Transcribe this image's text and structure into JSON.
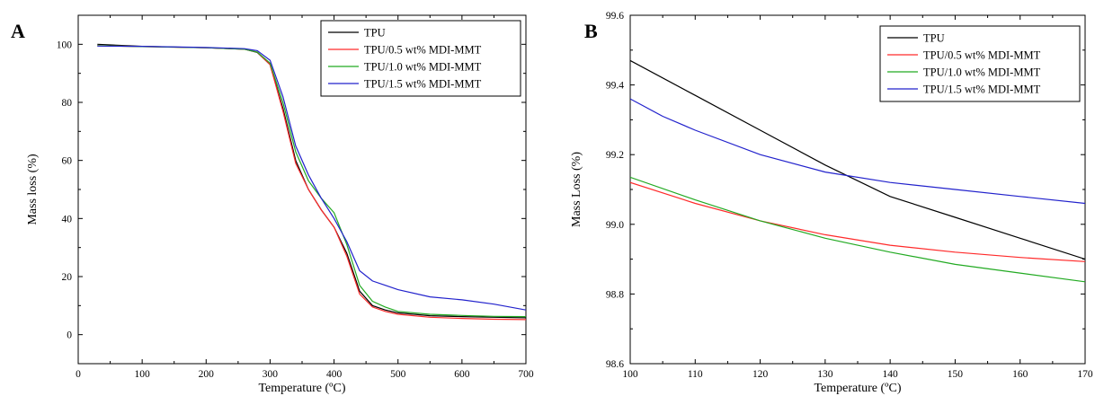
{
  "chart_data": [
    {
      "panel": "A",
      "type": "line",
      "xlabel": "Temperature (ºC)",
      "ylabel": "Mass loss (%)",
      "xlim": [
        0,
        700
      ],
      "ylim": [
        -10,
        110
      ],
      "xticks": [
        0,
        100,
        200,
        300,
        400,
        500,
        600,
        700
      ],
      "yticks": [
        0,
        20,
        40,
        60,
        80,
        100
      ],
      "legend_position": "top-right",
      "series": [
        {
          "name": "TPU",
          "color": "#000000",
          "x": [
            30,
            100,
            200,
            260,
            280,
            300,
            320,
            340,
            360,
            380,
            400,
            420,
            440,
            460,
            480,
            500,
            550,
            600,
            650,
            700
          ],
          "y": [
            100,
            99.3,
            98.8,
            98.3,
            97.2,
            93,
            78,
            60,
            50,
            43,
            37,
            28,
            15,
            10,
            8.5,
            7.5,
            6.5,
            6.2,
            6,
            5.8
          ]
        },
        {
          "name": "TPU/0.5 wt% MDI-MMT",
          "color": "#ff2a2a",
          "x": [
            30,
            100,
            200,
            260,
            280,
            300,
            320,
            340,
            360,
            380,
            400,
            420,
            440,
            460,
            480,
            500,
            550,
            600,
            650,
            700
          ],
          "y": [
            99.5,
            99.2,
            98.8,
            98.3,
            97.3,
            93,
            77,
            59,
            50,
            43,
            37,
            27,
            14,
            9.5,
            8,
            7,
            6,
            5.6,
            5.3,
            5.2
          ]
        },
        {
          "name": "TPU/1.0 wt% MDI-MMT",
          "color": "#22aa22",
          "x": [
            30,
            100,
            200,
            260,
            280,
            300,
            320,
            340,
            360,
            380,
            400,
            420,
            440,
            460,
            480,
            500,
            550,
            600,
            650,
            700
          ],
          "y": [
            99.5,
            99.2,
            98.8,
            98.3,
            97.3,
            93.5,
            80,
            63,
            53,
            47,
            42,
            31,
            17,
            11.5,
            9.5,
            8,
            7,
            6.6,
            6.3,
            6.2
          ]
        },
        {
          "name": "TPU/1.5 wt% MDI-MMT",
          "color": "#2222cc",
          "x": [
            30,
            100,
            200,
            260,
            280,
            300,
            320,
            340,
            360,
            380,
            400,
            420,
            440,
            460,
            480,
            500,
            550,
            600,
            650,
            700
          ],
          "y": [
            99.4,
            99.3,
            98.9,
            98.5,
            97.8,
            94.5,
            82,
            65,
            55,
            47,
            40,
            32,
            22,
            18.5,
            17,
            15.5,
            13,
            12,
            10.5,
            8.5
          ]
        }
      ]
    },
    {
      "panel": "B",
      "type": "line",
      "xlabel": "Temperature (ºC)",
      "ylabel": "Mass Loss (%)",
      "xlim": [
        100,
        170
      ],
      "ylim": [
        98.6,
        99.6
      ],
      "xticks": [
        100,
        110,
        120,
        130,
        140,
        150,
        160,
        170
      ],
      "yticks": [
        98.6,
        98.8,
        99.0,
        99.2,
        99.4,
        99.6
      ],
      "legend_position": "top-right",
      "series": [
        {
          "name": "TPU",
          "color": "#000000",
          "x": [
            100,
            110,
            120,
            130,
            140,
            150,
            160,
            170
          ],
          "y": [
            99.47,
            99.37,
            99.27,
            99.17,
            99.08,
            99.02,
            98.96,
            98.9
          ]
        },
        {
          "name": "TPU/0.5 wt% MDI-MMT",
          "color": "#ff2a2a",
          "x": [
            100,
            110,
            120,
            130,
            140,
            150,
            160,
            170
          ],
          "y": [
            99.12,
            99.06,
            99.01,
            98.97,
            98.94,
            98.92,
            98.905,
            98.893
          ]
        },
        {
          "name": "TPU/1.0 wt% MDI-MMT",
          "color": "#22aa22",
          "x": [
            100,
            110,
            120,
            130,
            140,
            150,
            160,
            170
          ],
          "y": [
            99.135,
            99.07,
            99.01,
            98.96,
            98.92,
            98.885,
            98.86,
            98.835
          ]
        },
        {
          "name": "TPU/1.5 wt% MDI-MMT",
          "color": "#2222cc",
          "x": [
            100,
            102,
            105,
            110,
            120,
            130,
            140,
            150,
            160,
            170
          ],
          "y": [
            99.36,
            99.34,
            99.31,
            99.27,
            99.2,
            99.15,
            99.12,
            99.1,
            99.08,
            99.06
          ]
        }
      ]
    }
  ]
}
